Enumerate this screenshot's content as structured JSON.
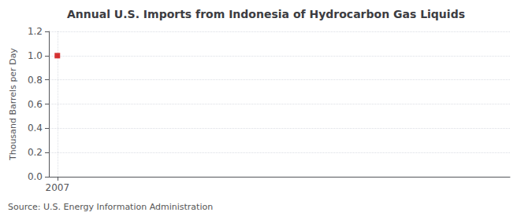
{
  "chart_data": {
    "type": "scatter",
    "title": "Annual U.S. Imports from Indonesia of Hydrocarbon Gas Liquids",
    "ylabel": "Thousand Barrels per Day",
    "annotation": "Source: U.S. Energy Information Administration",
    "x": [
      2007
    ],
    "values": [
      1.0
    ],
    "color": "#cc0000",
    "marker": "square",
    "xlim": [
      2006.55,
      2031
    ],
    "xticks": [
      2007
    ],
    "ylim": [
      0.0,
      1.2
    ],
    "yticks": [
      {
        "value": 0.0,
        "label": "0.0"
      },
      0.2,
      0.4,
      0.6,
      0.8,
      {
        "value": 1.0,
        "label": "1.0"
      },
      1.2
    ],
    "grid": true
  }
}
